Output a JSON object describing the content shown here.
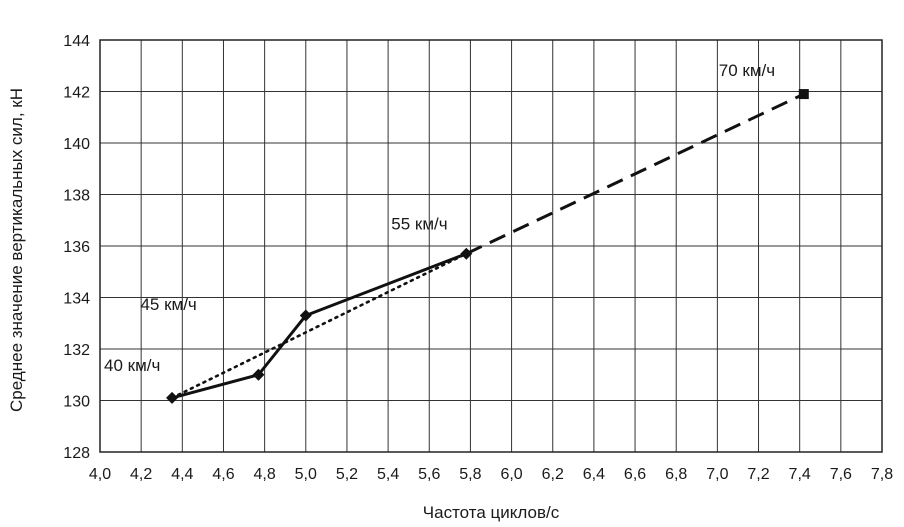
{
  "chart_data": {
    "type": "line",
    "title": "",
    "xlabel": "Частота циклов/с",
    "ylabel": "Среднее значение вертикальных сил, кН",
    "xlim": [
      4.0,
      7.8
    ],
    "ylim": [
      128,
      144
    ],
    "xticks": [
      "4,0",
      "4,2",
      "4,4",
      "4,6",
      "4,8",
      "5,0",
      "5,2",
      "5,4",
      "5,6",
      "5,8",
      "6,0",
      "6,2",
      "6,4",
      "6,6",
      "6,8",
      "7,0",
      "7,2",
      "7,4",
      "7,6",
      "7,8"
    ],
    "yticks": [
      "128",
      "130",
      "132",
      "134",
      "136",
      "138",
      "140",
      "142",
      "144"
    ],
    "grid": true,
    "series": [
      {
        "style": "solid",
        "marker": "diamond",
        "x": [
          4.35,
          4.77,
          5.0,
          5.78
        ],
        "y": [
          130.1,
          131.0,
          133.3,
          135.7
        ]
      },
      {
        "style": "dotted",
        "marker": "none",
        "x": [
          4.35,
          5.78
        ],
        "y": [
          130.1,
          135.7
        ]
      },
      {
        "style": "dashed",
        "marker": "square",
        "x": [
          5.78,
          7.42
        ],
        "y": [
          135.7,
          141.9
        ]
      }
    ],
    "annotations": [
      {
        "text": "40 км/ч",
        "x": 4.35,
        "y": 130.1
      },
      {
        "text": "45 км/ч",
        "x": 4.77,
        "y": 131.0
      },
      {
        "text": "55 км/ч",
        "x": 5.78,
        "y": 135.7
      },
      {
        "text": "70 км/ч",
        "x": 7.42,
        "y": 141.9
      }
    ]
  }
}
